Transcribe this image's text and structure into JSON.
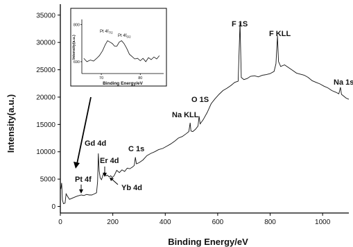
{
  "chart_data": [
    {
      "type": "line",
      "title": "",
      "xlabel": "Binding Energy/eV",
      "ylabel": "Intensity(a.u.)",
      "xlim": [
        0,
        1100
      ],
      "ylim": [
        -1200,
        37000
      ],
      "x_ticks": [
        0,
        200,
        400,
        600,
        800,
        1000
      ],
      "y_ticks": [
        0,
        5000,
        10000,
        15000,
        20000,
        25000,
        30000,
        35000
      ],
      "grid": false,
      "legend": "none",
      "series": [
        {
          "points": [
            [
              2,
              3200
            ],
            [
              5,
              4300
            ],
            [
              8,
              1200
            ],
            [
              12,
              500
            ],
            [
              18,
              600
            ],
            [
              22,
              2300
            ],
            [
              28,
              1800
            ],
            [
              35,
              1300
            ],
            [
              45,
              1500
            ],
            [
              55,
              1700
            ],
            [
              65,
              1900
            ],
            [
              72,
              2000
            ],
            [
              80,
              2100
            ],
            [
              90,
              2000
            ],
            [
              100,
              2200
            ],
            [
              110,
              2100
            ],
            [
              120,
              2100
            ],
            [
              130,
              2300
            ],
            [
              138,
              2500
            ],
            [
              142,
              4500
            ],
            [
              145,
              9700
            ],
            [
              148,
              6500
            ],
            [
              152,
              5200
            ],
            [
              157,
              4900
            ],
            [
              162,
              5700
            ],
            [
              168,
              6200
            ],
            [
              175,
              5600
            ],
            [
              180,
              5700
            ],
            [
              186,
              5400
            ],
            [
              192,
              5600
            ],
            [
              198,
              5300
            ],
            [
              205,
              5600
            ],
            [
              215,
              6600
            ],
            [
              225,
              6200
            ],
            [
              235,
              6700
            ],
            [
              245,
              6400
            ],
            [
              255,
              7000
            ],
            [
              265,
              6900
            ],
            [
              275,
              7200
            ],
            [
              282,
              7500
            ],
            [
              286,
              9000
            ],
            [
              290,
              7800
            ],
            [
              300,
              8000
            ],
            [
              315,
              8500
            ],
            [
              330,
              9300
            ],
            [
              345,
              9700
            ],
            [
              360,
              10000
            ],
            [
              375,
              10400
            ],
            [
              390,
              10600
            ],
            [
              405,
              11000
            ],
            [
              420,
              11400
            ],
            [
              435,
              11900
            ],
            [
              450,
              12500
            ],
            [
              465,
              12800
            ],
            [
              480,
              13300
            ],
            [
              490,
              13700
            ],
            [
              495,
              15300
            ],
            [
              498,
              13800
            ],
            [
              505,
              13700
            ],
            [
              515,
              14100
            ],
            [
              525,
              14700
            ],
            [
              529,
              16500
            ],
            [
              533,
              15100
            ],
            [
              545,
              15900
            ],
            [
              560,
              17200
            ],
            [
              575,
              18800
            ],
            [
              590,
              19700
            ],
            [
              605,
              20500
            ],
            [
              620,
              21200
            ],
            [
              635,
              21600
            ],
            [
              650,
              22100
            ],
            [
              665,
              22700
            ],
            [
              678,
              22900
            ],
            [
              685,
              33600
            ],
            [
              690,
              23600
            ],
            [
              700,
              23200
            ],
            [
              712,
              23400
            ],
            [
              725,
              23800
            ],
            [
              740,
              23900
            ],
            [
              755,
              23700
            ],
            [
              770,
              24000
            ],
            [
              785,
              24100
            ],
            [
              800,
              24300
            ],
            [
              815,
              24700
            ],
            [
              822,
              26100
            ],
            [
              828,
              31200
            ],
            [
              832,
              26500
            ],
            [
              840,
              25600
            ],
            [
              855,
              25900
            ],
            [
              870,
              25400
            ],
            [
              885,
              24900
            ],
            [
              900,
              24400
            ],
            [
              915,
              24200
            ],
            [
              930,
              24000
            ],
            [
              945,
              23600
            ],
            [
              960,
              23000
            ],
            [
              975,
              22700
            ],
            [
              990,
              22400
            ],
            [
              1005,
              22000
            ],
            [
              1020,
              21700
            ],
            [
              1035,
              21200
            ],
            [
              1050,
              20900
            ],
            [
              1062,
              20600
            ],
            [
              1068,
              21800
            ],
            [
              1072,
              20500
            ],
            [
              1080,
              20200
            ],
            [
              1090,
              19800
            ],
            [
              1100,
              19600
            ]
          ]
        }
      ]
    },
    {
      "type": "line",
      "title": "",
      "xlabel": "Binding Energy/eV",
      "ylabel": "Intensity(a.u.)",
      "xlim": [
        65,
        86
      ],
      "ylim": [
        655,
        815
      ],
      "x_ticks": [
        70,
        80
      ],
      "y_ticks": [
        690,
        800
      ],
      "series": [
        {
          "points": [
            [
              65.5,
              700
            ],
            [
              66.3,
              690
            ],
            [
              67.2,
              695
            ],
            [
              68,
              692
            ],
            [
              68.8,
              700
            ],
            [
              69.5,
              708
            ],
            [
              70.3,
              722
            ],
            [
              71,
              740
            ],
            [
              71.6,
              752
            ],
            [
              72.2,
              748
            ],
            [
              72.8,
              744
            ],
            [
              73.4,
              736
            ],
            [
              74,
              736
            ],
            [
              74.6,
              748
            ],
            [
              75.2,
              752
            ],
            [
              75.8,
              744
            ],
            [
              76.5,
              730
            ],
            [
              77.2,
              712
            ],
            [
              77.9,
              705
            ],
            [
              78.6,
              698
            ],
            [
              79.3,
              700
            ],
            [
              80,
              693
            ],
            [
              80.7,
              700
            ],
            [
              81.4,
              690
            ],
            [
              82.1,
              702
            ],
            [
              82.8,
              696
            ],
            [
              83.5,
              704
            ],
            [
              84.2,
              698
            ],
            [
              84.9,
              708
            ]
          ]
        }
      ]
    }
  ],
  "annotations": {
    "f1s": "F 1S",
    "fkll": "F KLL",
    "na1s": "Na 1s",
    "o1s": "O 1S",
    "nakll": "Na KLL",
    "c1s": "C 1s",
    "gd4d": "Gd 4d",
    "er4d": "Er 4d",
    "yb4d": "Yb 4d",
    "pt4f": "Pt 4f"
  },
  "inset_labels": {
    "pt4f72_main": "Pt 4f",
    "pt4f72_sub": "7/2",
    "pt4f52_main": "Pt 4f",
    "pt4f52_sub": "5/2"
  }
}
